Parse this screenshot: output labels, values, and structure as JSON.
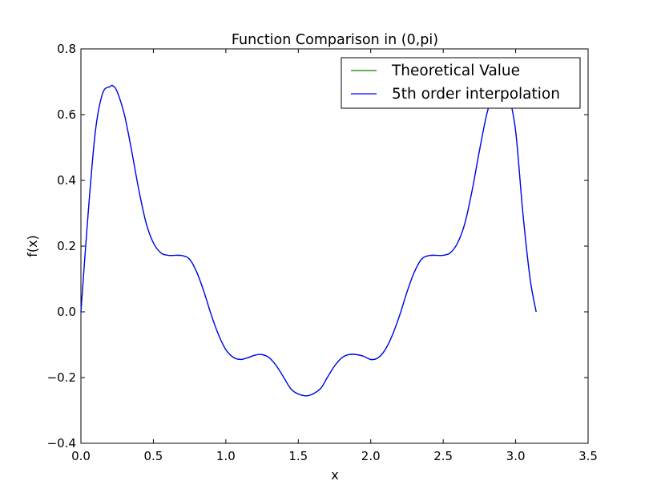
{
  "chart_data": {
    "type": "line",
    "title": "Function Comparison in (0,pi)",
    "xlabel": "x",
    "ylabel": "f(x)",
    "xlim": [
      0.0,
      3.5
    ],
    "ylim": [
      -0.4,
      0.8
    ],
    "xticks": [
      0.0,
      0.5,
      1.0,
      1.5,
      2.0,
      2.5,
      3.0,
      3.5
    ],
    "yticks": [
      -0.4,
      -0.2,
      0.0,
      0.2,
      0.4,
      0.6,
      0.8
    ],
    "xtick_labels": [
      "0.0",
      "0.5",
      "1.0",
      "1.5",
      "2.0",
      "2.5",
      "3.0",
      "3.5"
    ],
    "ytick_labels": [
      "−0.4",
      "−0.2",
      "0.0",
      "0.2",
      "0.4",
      "0.6",
      "0.8"
    ],
    "grid": false,
    "legend_position": "top-right",
    "series": [
      {
        "name": "Theoretical Value",
        "color": "#008000",
        "x": [
          0.0,
          0.05,
          0.1,
          0.15,
          0.2,
          0.22,
          0.25,
          0.3,
          0.35,
          0.4,
          0.45,
          0.5,
          0.55,
          0.6,
          0.65,
          0.7,
          0.75,
          0.8,
          0.85,
          0.9,
          0.95,
          1.0,
          1.05,
          1.1,
          1.15,
          1.2,
          1.25,
          1.3,
          1.35,
          1.4,
          1.45,
          1.5,
          1.57,
          1.65,
          1.7,
          1.75,
          1.8,
          1.85,
          1.9,
          1.95,
          2.0,
          2.05,
          2.1,
          2.15,
          2.2,
          2.25,
          2.3,
          2.35,
          2.4,
          2.45,
          2.5,
          2.55,
          2.6,
          2.65,
          2.7,
          2.75,
          2.8,
          2.85,
          2.9,
          2.92,
          2.95,
          3.0,
          3.05,
          3.1,
          3.1416
        ],
        "y": [
          0.0,
          0.3,
          0.55,
          0.665,
          0.685,
          0.688,
          0.67,
          0.6,
          0.49,
          0.37,
          0.27,
          0.21,
          0.18,
          0.172,
          0.172,
          0.171,
          0.16,
          0.12,
          0.06,
          -0.01,
          -0.07,
          -0.115,
          -0.138,
          -0.145,
          -0.14,
          -0.132,
          -0.13,
          -0.14,
          -0.165,
          -0.2,
          -0.235,
          -0.25,
          -0.255,
          -0.235,
          -0.2,
          -0.165,
          -0.14,
          -0.13,
          -0.13,
          -0.135,
          -0.145,
          -0.14,
          -0.115,
          -0.07,
          -0.01,
          0.06,
          0.12,
          0.16,
          0.171,
          0.172,
          0.172,
          0.18,
          0.21,
          0.27,
          0.37,
          0.49,
          0.6,
          0.67,
          0.685,
          0.688,
          0.665,
          0.55,
          0.3,
          0.1,
          0.0
        ]
      },
      {
        "name": "5th order interpolation",
        "color": "#0000ff",
        "x": [
          0.0,
          0.05,
          0.1,
          0.15,
          0.2,
          0.22,
          0.25,
          0.3,
          0.35,
          0.4,
          0.45,
          0.5,
          0.55,
          0.6,
          0.65,
          0.7,
          0.75,
          0.8,
          0.85,
          0.9,
          0.95,
          1.0,
          1.05,
          1.1,
          1.15,
          1.2,
          1.25,
          1.3,
          1.35,
          1.4,
          1.45,
          1.5,
          1.57,
          1.65,
          1.7,
          1.75,
          1.8,
          1.85,
          1.9,
          1.95,
          2.0,
          2.05,
          2.1,
          2.15,
          2.2,
          2.25,
          2.3,
          2.35,
          2.4,
          2.45,
          2.5,
          2.55,
          2.6,
          2.65,
          2.7,
          2.75,
          2.8,
          2.85,
          2.9,
          2.92,
          2.95,
          3.0,
          3.05,
          3.1,
          3.1416
        ],
        "y": [
          0.0,
          0.3,
          0.55,
          0.665,
          0.685,
          0.688,
          0.67,
          0.6,
          0.49,
          0.37,
          0.27,
          0.21,
          0.18,
          0.172,
          0.172,
          0.171,
          0.16,
          0.12,
          0.06,
          -0.01,
          -0.07,
          -0.115,
          -0.138,
          -0.145,
          -0.14,
          -0.132,
          -0.13,
          -0.14,
          -0.165,
          -0.2,
          -0.235,
          -0.25,
          -0.255,
          -0.235,
          -0.2,
          -0.165,
          -0.14,
          -0.13,
          -0.13,
          -0.135,
          -0.145,
          -0.14,
          -0.115,
          -0.07,
          -0.01,
          0.06,
          0.12,
          0.16,
          0.171,
          0.172,
          0.172,
          0.18,
          0.21,
          0.27,
          0.37,
          0.49,
          0.6,
          0.67,
          0.685,
          0.688,
          0.665,
          0.55,
          0.3,
          0.1,
          0.0
        ]
      }
    ]
  }
}
